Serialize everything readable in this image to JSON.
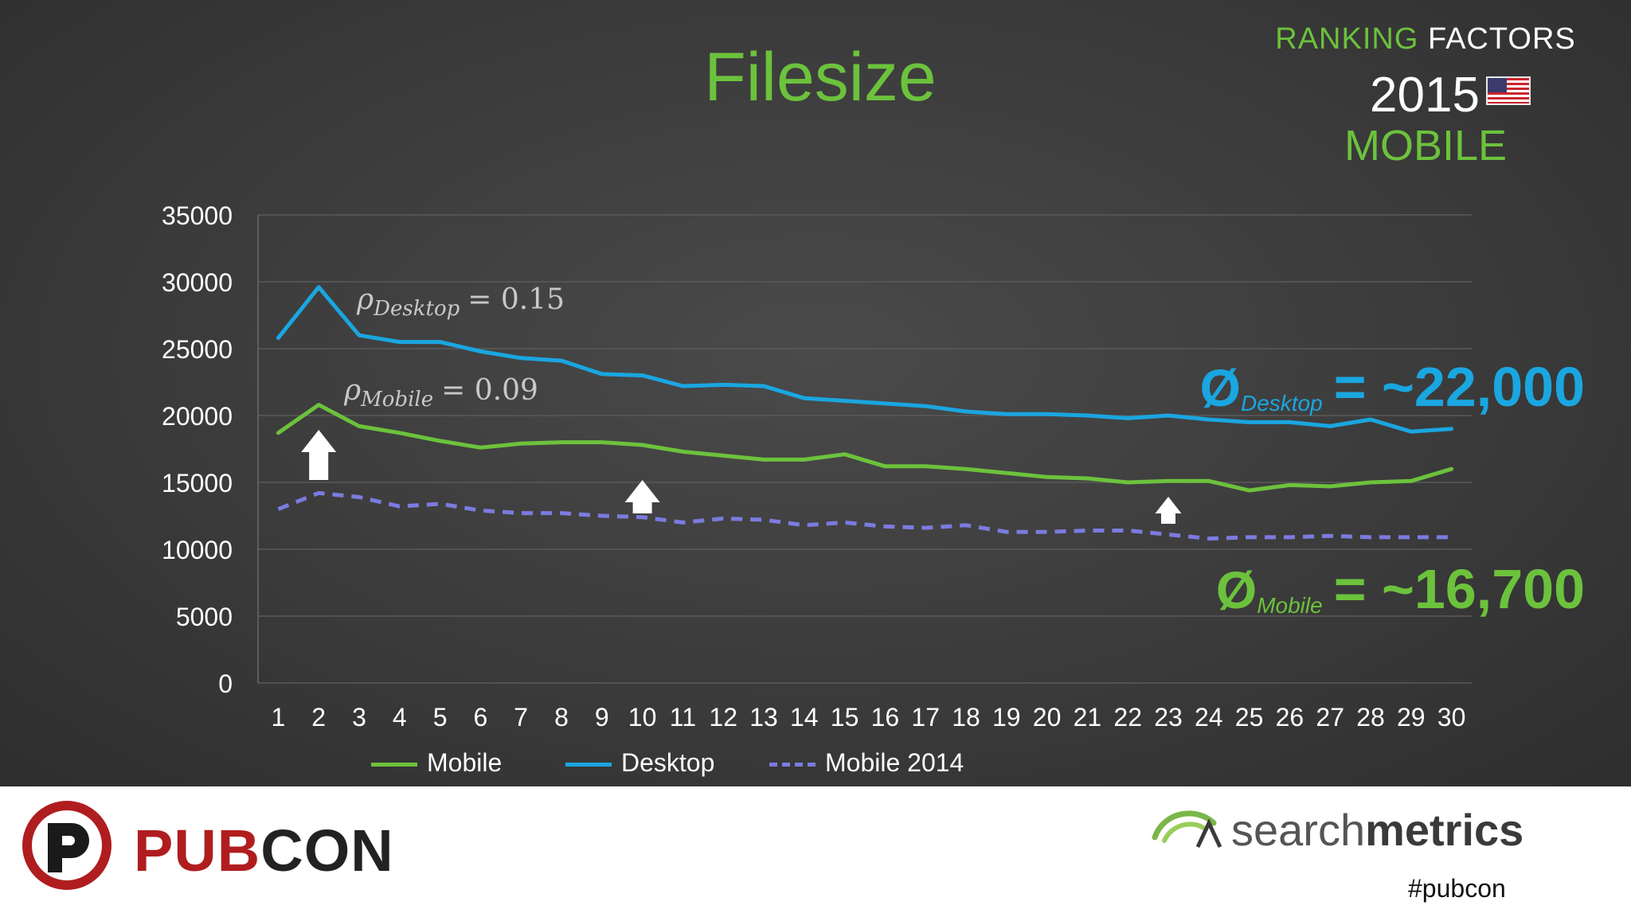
{
  "title": "Filesize",
  "badge": {
    "ranking": "RANKING",
    "factors": "FACTORS",
    "year": "2015",
    "segment": "MOBILE"
  },
  "annotations": {
    "rho_desktop_sym": "ρ",
    "rho_desktop_sub": "Desktop",
    "rho_desktop_val": "= 0.15",
    "rho_mobile_sym": "ρ",
    "rho_mobile_sub": "Mobile",
    "rho_mobile_val": "= 0.09",
    "avg_symbol": "Ø",
    "avg_desktop_sub": "Desktop",
    "avg_desktop_val": "= ~22,000",
    "avg_mobile_sub": "Mobile",
    "avg_mobile_val": "= ~16,700"
  },
  "colors": {
    "mobile": "#6cc23c",
    "desktop": "#1aa6e0",
    "mobile_2014": "#7b7be0",
    "grid": "#5a5a5a"
  },
  "chart_data": {
    "type": "line",
    "title": "Filesize",
    "x": [
      1,
      2,
      3,
      4,
      5,
      6,
      7,
      8,
      9,
      10,
      11,
      12,
      13,
      14,
      15,
      16,
      17,
      18,
      19,
      20,
      21,
      22,
      23,
      24,
      25,
      26,
      27,
      28,
      29,
      30
    ],
    "ylim": [
      0,
      35000
    ],
    "yticks": [
      0,
      5000,
      10000,
      15000,
      20000,
      25000,
      30000,
      35000
    ],
    "grid": true,
    "legend_position": "bottom",
    "series": [
      {
        "name": "Mobile",
        "style": "solid",
        "values": [
          18700,
          20800,
          19200,
          18700,
          18100,
          17600,
          17900,
          18000,
          18000,
          17800,
          17300,
          17000,
          16700,
          16700,
          17100,
          16200,
          16200,
          16000,
          15700,
          15400,
          15300,
          15000,
          15100,
          15100,
          14400,
          14800,
          14700,
          15000,
          15100,
          16000
        ]
      },
      {
        "name": "Desktop",
        "style": "solid",
        "values": [
          25800,
          29600,
          26000,
          25500,
          25500,
          24800,
          24300,
          24100,
          23100,
          23000,
          22200,
          22300,
          22200,
          21300,
          21100,
          20900,
          20700,
          20300,
          20100,
          20100,
          20000,
          19800,
          20000,
          19700,
          19500,
          19500,
          19200,
          19700,
          18800,
          19000
        ]
      },
      {
        "name": "Mobile 2014",
        "style": "dashed",
        "values": [
          13000,
          14200,
          13900,
          13200,
          13400,
          12900,
          12700,
          12700,
          12500,
          12400,
          12000,
          12300,
          12200,
          11800,
          12000,
          11700,
          11600,
          11800,
          11300,
          11300,
          11400,
          11400,
          11100,
          10800,
          10900,
          10900,
          11000,
          10900,
          10900,
          10900
        ]
      }
    ]
  },
  "footer": {
    "pubcon_r": "PUB",
    "pubcon_k": "CON",
    "sm_a": "search",
    "sm_b": "metrics",
    "hashtag": "#pubcon"
  }
}
